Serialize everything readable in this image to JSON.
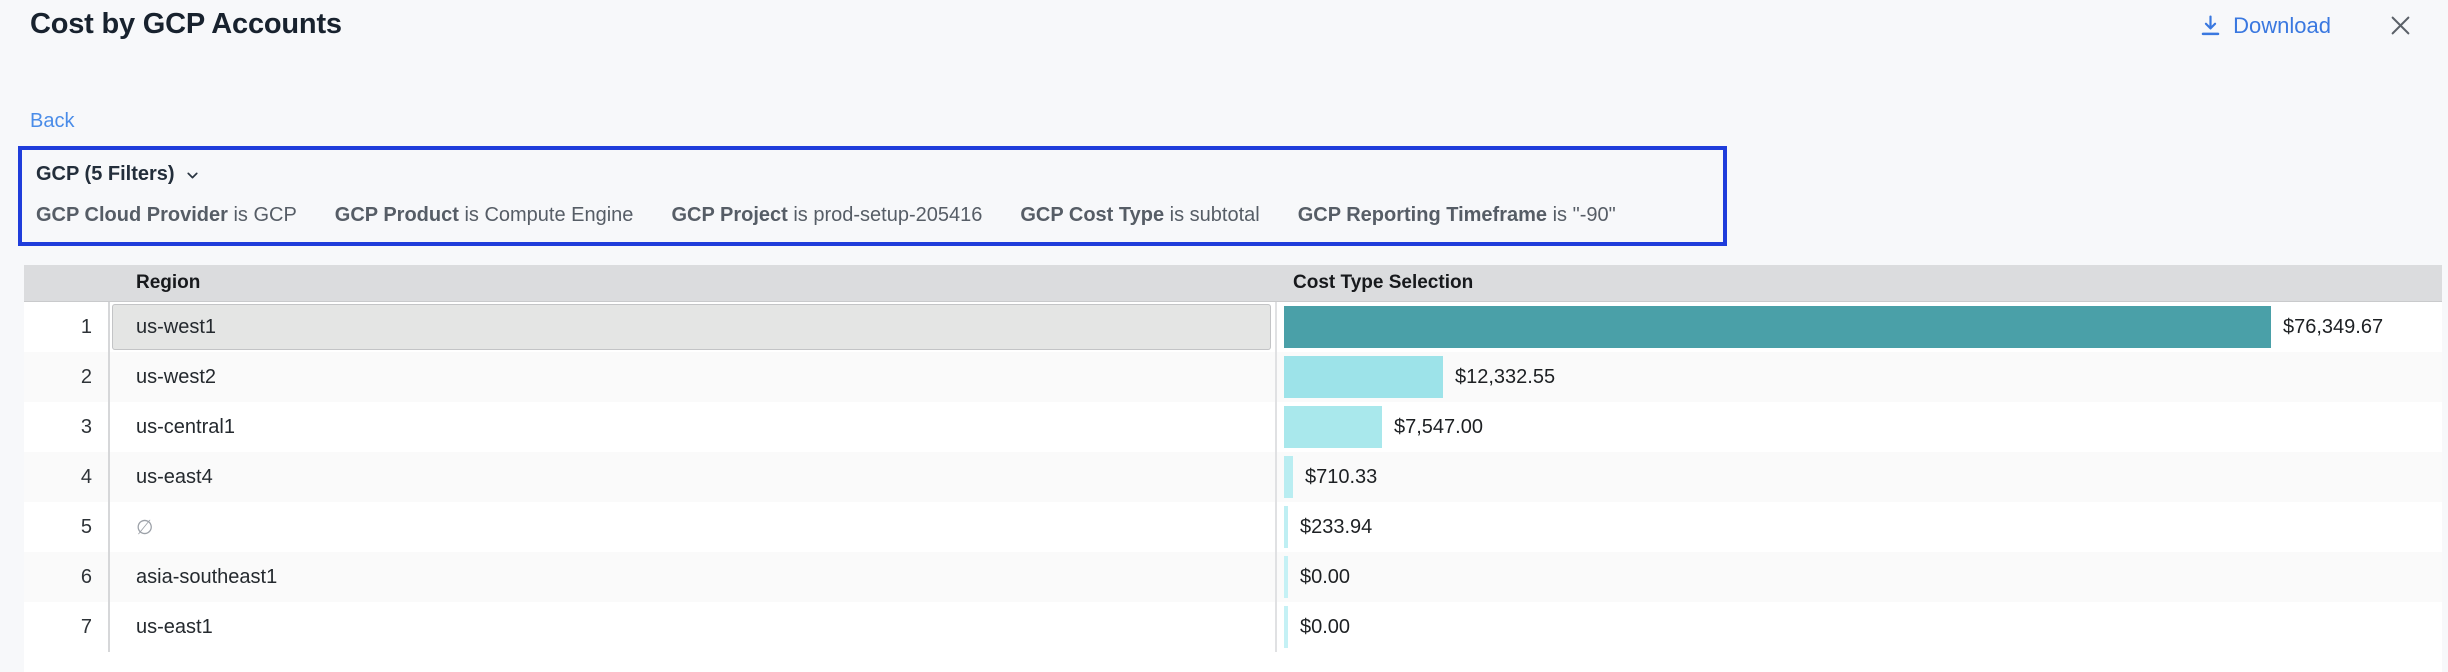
{
  "header": {
    "title": "Cost by GCP Accounts",
    "download_label": "Download"
  },
  "nav": {
    "back_label": "Back"
  },
  "filter_bar": {
    "summary_label": "GCP (5 Filters)",
    "filters": [
      {
        "label": "GCP Cloud Provider",
        "condition": "is GCP"
      },
      {
        "label": "GCP Product",
        "condition": "is Compute Engine"
      },
      {
        "label": "GCP Project",
        "condition": "is prod-setup-205416"
      },
      {
        "label": "GCP Cost Type",
        "condition": "is subtotal"
      },
      {
        "label": "GCP Reporting Timeframe",
        "condition": "is \"-90\""
      }
    ]
  },
  "table": {
    "columns": {
      "region": "Region",
      "cost": "Cost Type Selection"
    },
    "rows": [
      {
        "index": 1,
        "region": "us-west1",
        "value": "$76,349.67",
        "amount": 76349.67,
        "bar_color": "#4aa0a8",
        "selected": true,
        "region_empty": false
      },
      {
        "index": 2,
        "region": "us-west2",
        "value": "$12,332.55",
        "amount": 12332.55,
        "bar_color": "#9de3e9",
        "selected": false,
        "region_empty": false
      },
      {
        "index": 3,
        "region": "us-central1",
        "value": "$7,547.00",
        "amount": 7547.0,
        "bar_color": "#a9e8ec",
        "selected": false,
        "region_empty": false
      },
      {
        "index": 4,
        "region": "us-east4",
        "value": "$710.33",
        "amount": 710.33,
        "bar_color": "#b9edf1",
        "selected": false,
        "region_empty": false
      },
      {
        "index": 5,
        "region": "∅",
        "value": "$233.94",
        "amount": 233.94,
        "bar_color": "#bfeff3",
        "selected": false,
        "region_empty": true
      },
      {
        "index": 6,
        "region": "asia-southeast1",
        "value": "$0.00",
        "amount": 0,
        "bar_color": "#c5f1f5",
        "selected": false,
        "region_empty": false
      },
      {
        "index": 7,
        "region": "us-east1",
        "value": "$0.00",
        "amount": 0,
        "bar_color": "#c5f1f5",
        "selected": false,
        "region_empty": false
      }
    ]
  },
  "chart_data": {
    "type": "bar",
    "title": "Cost by GCP Accounts",
    "categories": [
      "us-west1",
      "us-west2",
      "us-central1",
      "us-east4",
      "∅",
      "asia-southeast1",
      "us-east1"
    ],
    "values": [
      76349.67,
      12332.55,
      7547.0,
      710.33,
      233.94,
      0.0,
      0.0
    ],
    "xlabel": "Cost Type Selection",
    "ylabel": "Region",
    "orientation": "horizontal",
    "value_labels": [
      "$76,349.67",
      "$12,332.55",
      "$7,547.00",
      "$710.33",
      "$233.94",
      "$0.00",
      "$0.00"
    ]
  },
  "colors": {
    "accent_blue": "#3a78e0",
    "back_link_blue": "#4a8ce8",
    "filter_border_blue": "#1f3ddb",
    "header_bg": "#dbdcde",
    "selected_cell_bg": "#e4e5e4",
    "page_bg": "#f7f8fa",
    "bar_primary": "#4aa0a8",
    "bar_light": "#9de3e9"
  }
}
